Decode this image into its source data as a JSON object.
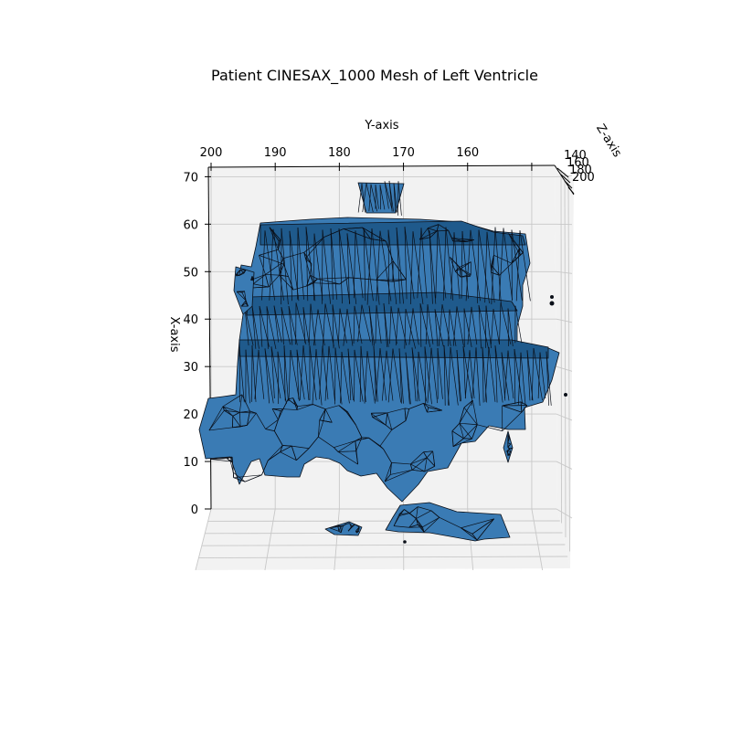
{
  "chart_data": {
    "type": "surface3d",
    "title": "Patient CINESAX_1000 Mesh of Left Ventricle",
    "xlabel": "X-axis",
    "ylabel": "Y-axis",
    "zlabel": "Z-axis",
    "x_ticks": [
      0,
      10,
      20,
      30,
      40,
      50,
      60,
      70
    ],
    "y_ticks": [
      200,
      190,
      180,
      170,
      160,
      150
    ],
    "y_tick_labels": [
      "200",
      "190",
      "180",
      "170",
      "160",
      ""
    ],
    "z_ticks": [
      140,
      160,
      180,
      200
    ],
    "z_tick_labels": [
      "140",
      "160",
      "180",
      "200"
    ],
    "xlim": [
      0,
      72
    ],
    "ylim": [
      200,
      146
    ],
    "grid": true,
    "face_color": "#3a7bb4",
    "edge_color": "#0a0f18"
  }
}
